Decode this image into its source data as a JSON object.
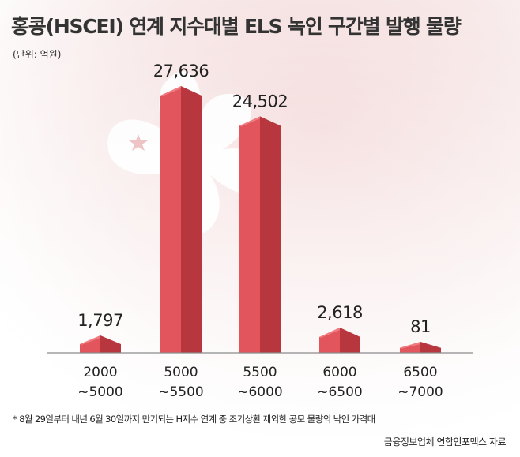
{
  "title": "홍콩(HSCEI) 연계 지수대별 ELS 녹인 구간별 발행 물량",
  "unit": "(단위: 억원)",
  "footnote": "* 8월 29일부터 내년 6월 30일까지 만기되는 H지수 연계 중 조기상환 제외한 공모 물량의 낙인 가격대",
  "source": "금융정보업체 연합인포맥스 자료",
  "colors": {
    "bar_front": "#e2555c",
    "bar_side": "#b8363d",
    "bar_top": "#ee7c80",
    "flag_red": "#f3dcdc"
  },
  "chart_data": {
    "type": "bar",
    "categories": [
      [
        "2000",
        "~5000"
      ],
      [
        "5000",
        "~5500"
      ],
      [
        "5500",
        "~6000"
      ],
      [
        "6000",
        "~6500"
      ],
      [
        "6500",
        "~7000"
      ]
    ],
    "values": [
      1797,
      27636,
      24502,
      2618,
      81
    ],
    "value_labels": [
      "1,797",
      "27,636",
      "24,502",
      "2,618",
      "81"
    ],
    "ylim": [
      0,
      27636
    ]
  }
}
